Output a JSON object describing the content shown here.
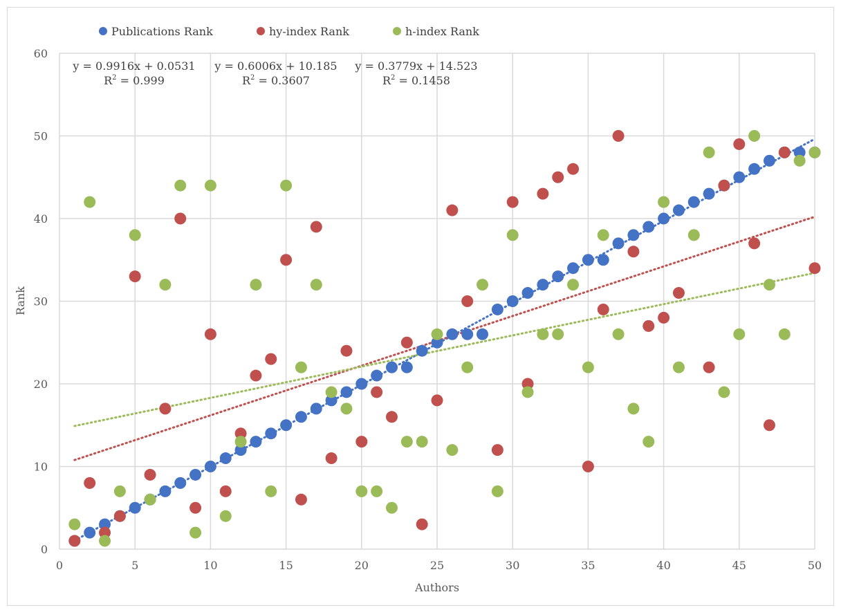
{
  "chart_data": {
    "type": "scatter",
    "title": "",
    "xlabel": "Authors",
    "ylabel": "Rank",
    "xlim": [
      0,
      50
    ],
    "ylim": [
      0,
      60
    ],
    "xticks": [
      "0",
      "5",
      "10",
      "15",
      "20",
      "25",
      "30",
      "35",
      "40",
      "45",
      "50"
    ],
    "yticks": [
      "0",
      "10",
      "20",
      "30",
      "40",
      "50",
      "60"
    ],
    "grid": true,
    "legend_position": "top",
    "series": [
      {
        "name": "Publications Rank",
        "color": "#4472C4",
        "x": [
          1,
          2,
          3,
          4,
          5,
          6,
          7,
          8,
          9,
          10,
          11,
          12,
          13,
          14,
          15,
          16,
          17,
          18,
          19,
          20,
          21,
          22,
          23,
          24,
          25,
          26,
          27,
          28,
          29,
          30,
          31,
          32,
          33,
          34,
          35,
          36,
          37,
          38,
          39,
          40,
          41,
          42,
          43,
          44,
          45,
          46,
          47,
          48,
          49,
          50
        ],
        "y": [
          1,
          2,
          3,
          4,
          5,
          6,
          7,
          8,
          9,
          10,
          11,
          12,
          13,
          14,
          15,
          16,
          17,
          18,
          19,
          20,
          21,
          22,
          22,
          24,
          25,
          26,
          26,
          26,
          29,
          30,
          31,
          32,
          33,
          34,
          35,
          35,
          37,
          38,
          39,
          40,
          41,
          42,
          43,
          44,
          45,
          46,
          47,
          48,
          48,
          48
        ],
        "trendline": {
          "slope": 0.9916,
          "intercept": 0.0531,
          "equation": "y = 0.9916x + 0.0531",
          "r2_label": "R",
          "r2_value": " = 0.999"
        }
      },
      {
        "name": "hy-index Rank",
        "color": "#C0504D",
        "x": [
          1,
          2,
          3,
          4,
          5,
          6,
          7,
          8,
          9,
          10,
          11,
          12,
          13,
          14,
          15,
          16,
          17,
          18,
          19,
          20,
          21,
          22,
          23,
          24,
          25,
          26,
          27,
          29,
          30,
          31,
          32,
          33,
          34,
          35,
          36,
          37,
          38,
          39,
          40,
          41,
          43,
          44,
          45,
          46,
          47,
          48,
          50
        ],
        "y": [
          1,
          8,
          2,
          4,
          33,
          9,
          17,
          40,
          5,
          26,
          7,
          14,
          21,
          23,
          35,
          6,
          39,
          11,
          24,
          13,
          19,
          16,
          25,
          3,
          18,
          41,
          30,
          12,
          42,
          20,
          43,
          45,
          46,
          10,
          29,
          50,
          36,
          27,
          28,
          31,
          22,
          44,
          49,
          37,
          15,
          48,
          34
        ],
        "trendline": {
          "slope": 0.6006,
          "intercept": 10.185,
          "equation": "y = 0.6006x + 10.185",
          "r2_label": "R",
          "r2_value": " = 0.3607"
        }
      },
      {
        "name": "h-index Rank",
        "color": "#9BBB59",
        "x": [
          1,
          2,
          3,
          4,
          5,
          6,
          7,
          8,
          9,
          10,
          11,
          12,
          13,
          14,
          15,
          16,
          17,
          18,
          19,
          20,
          21,
          22,
          23,
          24,
          25,
          26,
          27,
          28,
          29,
          30,
          31,
          32,
          33,
          34,
          35,
          36,
          37,
          38,
          39,
          40,
          41,
          42,
          43,
          44,
          45,
          46,
          47,
          48,
          49,
          50
        ],
        "y": [
          3,
          42,
          1,
          7,
          38,
          6,
          32,
          44,
          2,
          44,
          4,
          13,
          32,
          7,
          44,
          22,
          32,
          19,
          17,
          7,
          7,
          5,
          13,
          13,
          26,
          12,
          22,
          32,
          7,
          38,
          19,
          26,
          26,
          32,
          22,
          38,
          26,
          17,
          13,
          42,
          22,
          38,
          48,
          19,
          26,
          50,
          32,
          26,
          47,
          48
        ],
        "trendline": {
          "slope": 0.3779,
          "intercept": 14.523,
          "equation": "y = 0.3779x + 14.523",
          "r2_label": "R",
          "r2_value": " = 0.1458"
        }
      }
    ]
  }
}
